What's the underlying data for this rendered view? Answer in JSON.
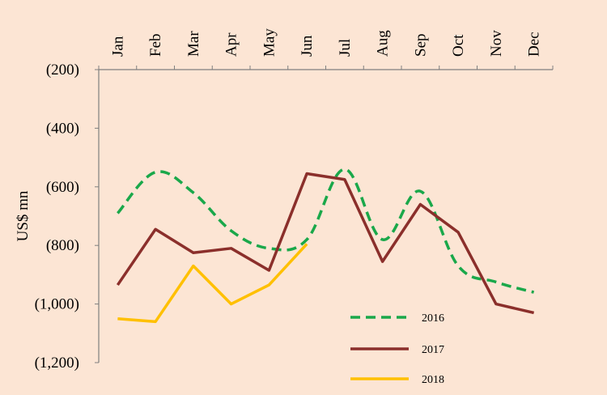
{
  "chart_data": {
    "type": "line",
    "title": "",
    "xlabel": "",
    "ylabel": "US$ mn",
    "categories": [
      "Jan",
      "Feb",
      "Mar",
      "Apr",
      "May",
      "Jun",
      "Jul",
      "Aug",
      "Sep",
      "Oct",
      "Nov",
      "Dec"
    ],
    "ylim": [
      -1200,
      -200
    ],
    "yticks": [
      -200,
      -400,
      -600,
      -800,
      -1000,
      -1200
    ],
    "ytick_labels": [
      "(200)",
      "(400)",
      "(600)",
      "(800)",
      "(1,000)",
      "(1,200)"
    ],
    "x_axis_position": "top",
    "grid": false,
    "legend_position": "bottom-right",
    "series": [
      {
        "name": "2016",
        "color": "#1aa84a",
        "style": "dashed",
        "values": [
          -690,
          -550,
          -620,
          -750,
          -810,
          -780,
          -540,
          -780,
          -615,
          -870,
          -925,
          -960
        ]
      },
      {
        "name": "2017",
        "color": "#8b2f2b",
        "style": "solid",
        "values": [
          -935,
          -745,
          -825,
          -810,
          -885,
          -555,
          -575,
          -855,
          -660,
          -755,
          -1000,
          -1030
        ]
      },
      {
        "name": "2018",
        "color": "#ffc000",
        "style": "solid",
        "values": [
          -1050,
          -1060,
          -870,
          -1000,
          -935,
          -795,
          null,
          null,
          null,
          null,
          null,
          null
        ]
      }
    ]
  }
}
